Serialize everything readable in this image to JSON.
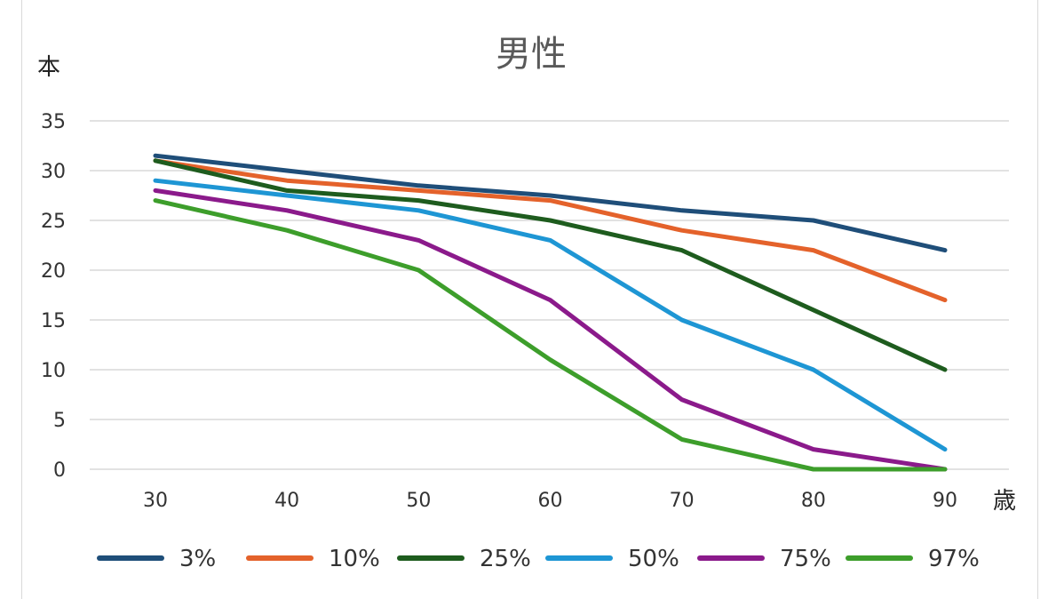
{
  "chart_data": {
    "type": "line",
    "title": "男性",
    "ylabel": "本",
    "xlabel": "歳",
    "categories": [
      "30",
      "40",
      "50",
      "60",
      "70",
      "80",
      "90"
    ],
    "ylim": [
      0,
      35
    ],
    "yticks": [
      0,
      5,
      10,
      15,
      20,
      25,
      30,
      35
    ],
    "grid": true,
    "legend": "bottom",
    "series": [
      {
        "name": "3%",
        "color": "#1f4e79",
        "values": [
          31.5,
          30,
          28.5,
          27.5,
          26,
          25,
          22
        ]
      },
      {
        "name": "10%",
        "color": "#e4622b",
        "values": [
          31,
          29,
          28,
          27,
          24,
          22,
          17
        ]
      },
      {
        "name": "25%",
        "color": "#1e5c1e",
        "values": [
          31,
          28,
          27,
          25,
          22,
          16,
          10
        ]
      },
      {
        "name": "50%",
        "color": "#1e96d4",
        "values": [
          29,
          27.5,
          26,
          23,
          15,
          10,
          2
        ]
      },
      {
        "name": "75%",
        "color": "#8b1a8b",
        "values": [
          28,
          26,
          23,
          17,
          7,
          2,
          0
        ]
      },
      {
        "name": "97%",
        "color": "#3d9e2b",
        "values": [
          27,
          24,
          20,
          11,
          3,
          0,
          0
        ]
      }
    ]
  }
}
